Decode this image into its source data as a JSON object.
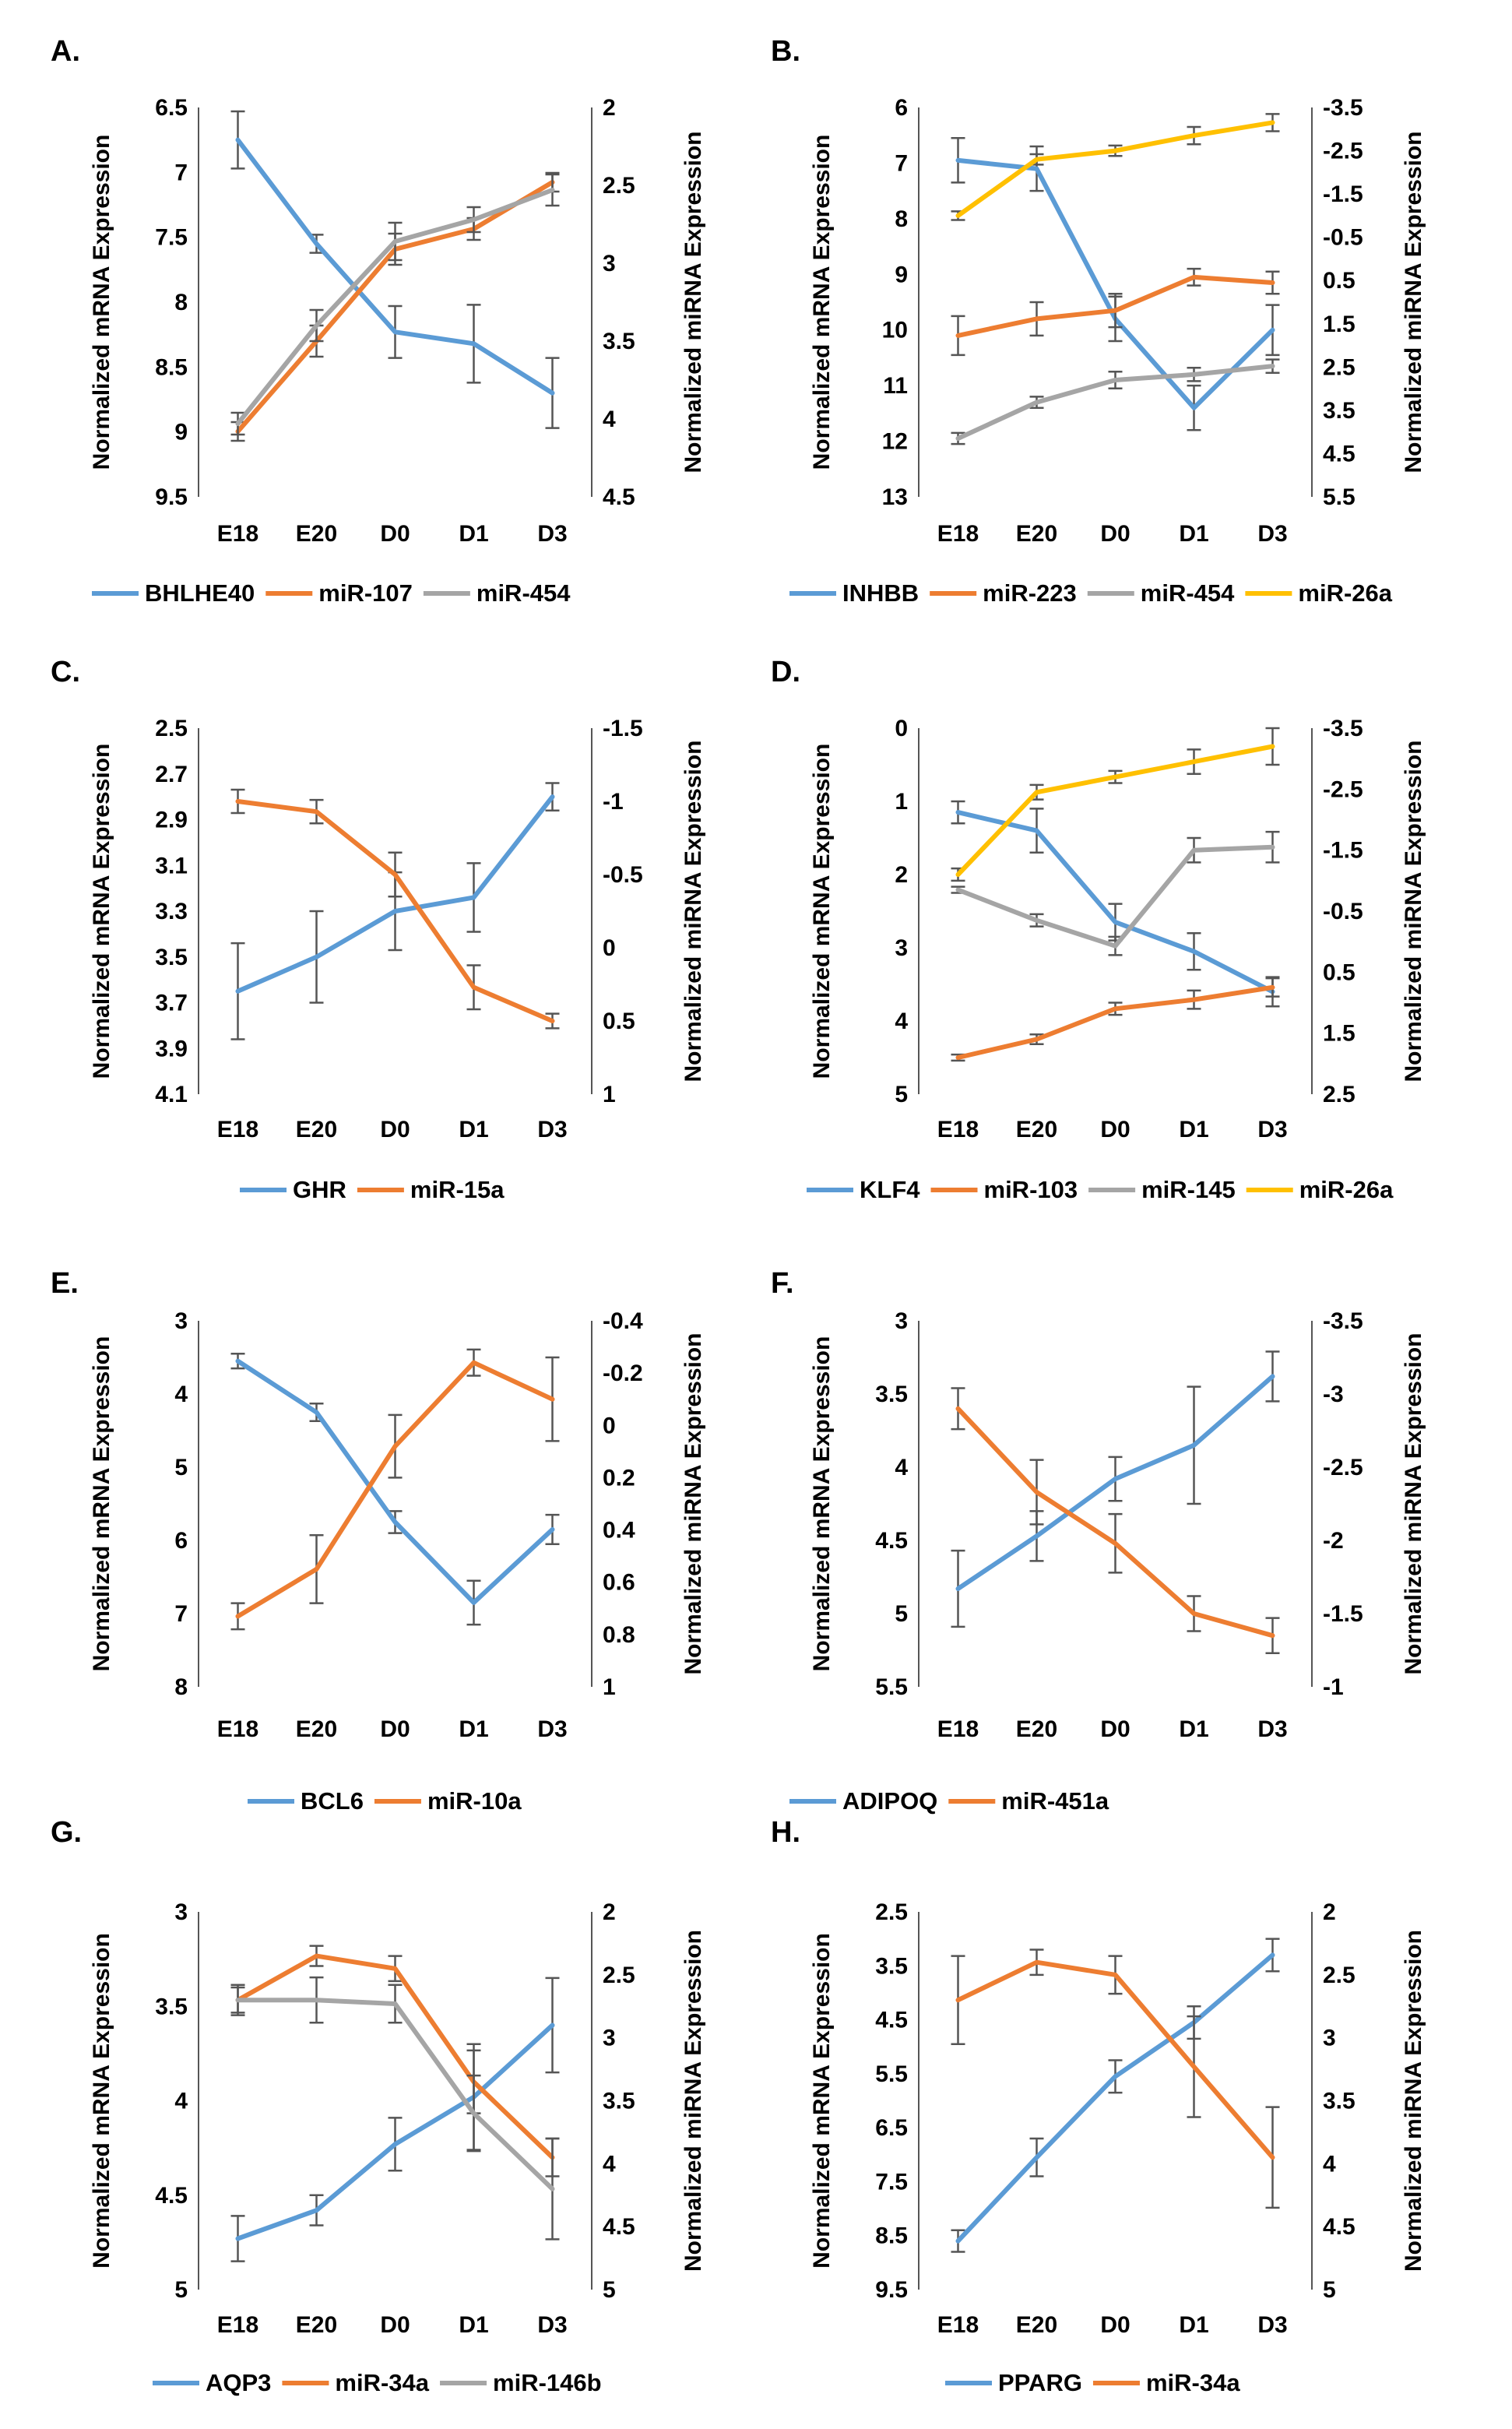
{
  "chart_data": [
    {
      "type": "line",
      "panel": "A.",
      "categories": [
        "E18",
        "E20",
        "D0",
        "D1",
        "D3"
      ],
      "ylabel": "Normalized mRNA Expression",
      "y2label": "Normalized miRNA Expression",
      "ylim": [
        6.5,
        9.5
      ],
      "y_ticks": [
        "6.5",
        "7",
        "7.5",
        "8",
        "8.5",
        "9",
        "9.5"
      ],
      "y_inverted": true,
      "y2lim": [
        2,
        4.5
      ],
      "y2_ticks": [
        "2",
        "2.5",
        "3",
        "3.5",
        "4",
        "4.5"
      ],
      "y2_inverted": true,
      "series": [
        {
          "name": "BHLHE40",
          "color": "#5b9bd5",
          "axis": "left",
          "values": [
            6.75,
            7.55,
            8.23,
            8.32,
            8.7
          ],
          "errors": [
            0.22,
            0.07,
            0.2,
            0.3,
            0.27
          ]
        },
        {
          "name": "miR-107",
          "color": "#ed7d31",
          "axis": "right",
          "values": [
            4.08,
            3.5,
            2.91,
            2.78,
            2.48
          ],
          "errors": [
            0.06,
            0.1,
            0.1,
            0.07,
            0.06
          ]
        },
        {
          "name": "miR-454",
          "color": "#a5a5a5",
          "axis": "right",
          "values": [
            4.03,
            3.4,
            2.86,
            2.72,
            2.53
          ],
          "errors": [
            0.07,
            0.1,
            0.12,
            0.08,
            0.1
          ]
        }
      ]
    },
    {
      "type": "line",
      "panel": "B.",
      "categories": [
        "E18",
        "E20",
        "D0",
        "D1",
        "D3"
      ],
      "ylabel": "Normalized mRNA Expression",
      "y2label": "Normalized miRNA Expression",
      "ylim": [
        6,
        13
      ],
      "y_ticks": [
        "6",
        "7",
        "8",
        "9",
        "10",
        "11",
        "12",
        "13"
      ],
      "y_inverted": true,
      "y2lim": [
        -3.5,
        5.5
      ],
      "y2_ticks": [
        "-3.5",
        "-2.5",
        "-1.5",
        "-0.5",
        "0.5",
        "1.5",
        "2.5",
        "3.5",
        "4.5",
        "5.5"
      ],
      "y2_inverted": true,
      "series": [
        {
          "name": "INHBB",
          "color": "#5b9bd5",
          "axis": "left",
          "values": [
            6.95,
            7.1,
            9.8,
            11.4,
            10.0
          ],
          "errors": [
            0.4,
            0.4,
            0.4,
            0.4,
            0.45
          ]
        },
        {
          "name": "miR-223",
          "color": "#ed7d31",
          "axis": "left",
          "values": [
            10.1,
            9.8,
            9.65,
            9.05,
            9.15
          ],
          "errors": [
            0.35,
            0.3,
            0.3,
            0.15,
            0.2
          ]
        },
        {
          "name": "miR-454",
          "color": "#a5a5a5",
          "axis": "left",
          "values": [
            11.95,
            11.3,
            10.9,
            10.8,
            10.65
          ],
          "errors": [
            0.1,
            0.1,
            0.15,
            0.12,
            0.12
          ]
        },
        {
          "name": "miR-26a",
          "color": "#ffc000",
          "axis": "right",
          "values": [
            -1.0,
            -2.3,
            -2.5,
            -2.85,
            -3.15
          ],
          "errors": [
            0.1,
            0.12,
            0.12,
            0.2,
            0.2
          ]
        }
      ]
    },
    {
      "type": "line",
      "panel": "C.",
      "categories": [
        "E18",
        "E20",
        "D0",
        "D1",
        "D3"
      ],
      "ylabel": "Normalized mRNA Expression",
      "y2label": "Normalized miRNA Expression",
      "ylim": [
        2.5,
        4.1
      ],
      "y_ticks": [
        "2.5",
        "2.7",
        "2.9",
        "3.1",
        "3.3",
        "3.5",
        "3.7",
        "3.9",
        "4.1"
      ],
      "y_inverted": true,
      "y2lim": [
        -1.5,
        1
      ],
      "y2_ticks": [
        "-1.5",
        "-1",
        "-0.5",
        "0",
        "0.5",
        "1"
      ],
      "y2_inverted": true,
      "series": [
        {
          "name": "GHR",
          "color": "#5b9bd5",
          "axis": "left",
          "values": [
            3.65,
            3.5,
            3.3,
            3.24,
            2.8
          ],
          "errors": [
            0.21,
            0.2,
            0.17,
            0.15,
            0.06
          ]
        },
        {
          "name": "miR-15a",
          "color": "#ed7d31",
          "axis": "right",
          "values": [
            -1.0,
            -0.93,
            -0.5,
            0.27,
            0.5
          ],
          "errors": [
            0.08,
            0.08,
            0.15,
            0.15,
            0.05
          ]
        }
      ]
    },
    {
      "type": "line",
      "panel": "D.",
      "categories": [
        "E18",
        "E20",
        "D0",
        "D1",
        "D3"
      ],
      "ylabel": "Normalized mRNA Expression",
      "y2label": "Normalized miRNA Expression",
      "ylim": [
        0,
        5
      ],
      "y_ticks": [
        "0",
        "1",
        "2",
        "3",
        "4",
        "5"
      ],
      "y_inverted": true,
      "y2lim": [
        -3.5,
        2.5
      ],
      "y2_ticks": [
        "-3.5",
        "-2.5",
        "-1.5",
        "-0.5",
        "0.5",
        "1.5",
        "2.5"
      ],
      "y2_inverted": true,
      "series": [
        {
          "name": "KLF4",
          "color": "#5b9bd5",
          "axis": "left",
          "values": [
            1.15,
            1.4,
            2.65,
            3.05,
            3.6
          ],
          "errors": [
            0.15,
            0.3,
            0.25,
            0.25,
            0.2
          ]
        },
        {
          "name": "miR-103",
          "color": "#ed7d31",
          "axis": "right",
          "values": [
            1.9,
            1.6,
            1.1,
            0.95,
            0.75
          ],
          "errors": [
            0.05,
            0.08,
            0.1,
            0.15,
            0.15
          ]
        },
        {
          "name": "miR-145",
          "color": "#a5a5a5",
          "axis": "right",
          "values": [
            -0.85,
            -0.35,
            0.07,
            -1.5,
            -1.55
          ],
          "errors": [
            0.05,
            0.1,
            0.15,
            0.2,
            0.25
          ]
        },
        {
          "name": "miR-26a",
          "color": "#ffc000",
          "axis": "right",
          "values": [
            -1.1,
            -2.45,
            -2.7,
            -2.95,
            -3.2
          ],
          "errors": [
            0.1,
            0.12,
            0.1,
            0.2,
            0.3
          ]
        }
      ]
    },
    {
      "type": "line",
      "panel": "E.",
      "categories": [
        "E18",
        "E20",
        "D0",
        "D1",
        "D3"
      ],
      "ylabel": "Normalized mRNA Expression",
      "y2label": "Normalized miRNA Expression",
      "ylim": [
        3,
        8
      ],
      "y_ticks": [
        "3",
        "4",
        "5",
        "6",
        "7",
        "8"
      ],
      "y_inverted": true,
      "y2lim": [
        -0.4,
        1
      ],
      "y2_ticks": [
        "-0.4",
        "-0.2",
        "0",
        "0.2",
        "0.4",
        "0.6",
        "0.8",
        "1"
      ],
      "y2_inverted": true,
      "series": [
        {
          "name": "BCL6",
          "color": "#5b9bd5",
          "axis": "left",
          "values": [
            3.55,
            4.25,
            5.75,
            6.85,
            5.85
          ],
          "errors": [
            0.1,
            0.12,
            0.15,
            0.3,
            0.2
          ]
        },
        {
          "name": "miR-10a",
          "color": "#ed7d31",
          "axis": "right",
          "values": [
            0.73,
            0.55,
            0.08,
            -0.24,
            -0.1
          ],
          "errors": [
            0.05,
            0.13,
            0.12,
            0.05,
            0.16
          ]
        }
      ]
    },
    {
      "type": "line",
      "panel": "F.",
      "categories": [
        "E18",
        "E20",
        "D0",
        "D1",
        "D3"
      ],
      "ylabel": "Normalized mRNA Expression",
      "y2label": "Normalized miRNA Expression",
      "ylim": [
        3,
        5.5
      ],
      "y_ticks": [
        "3",
        "3.5",
        "4",
        "4.5",
        "5",
        "5.5"
      ],
      "y_inverted": true,
      "y2lim": [
        -3.5,
        -1
      ],
      "y2_ticks": [
        "-3.5",
        "-3",
        "-2.5",
        "-2",
        "-1.5",
        "-1"
      ],
      "y2_inverted": true,
      "series": [
        {
          "name": "ADIPOQ",
          "color": "#5b9bd5",
          "axis": "left",
          "values": [
            4.83,
            4.47,
            4.08,
            3.85,
            3.38
          ],
          "errors": [
            0.26,
            0.17,
            0.15,
            0.4,
            0.17
          ]
        },
        {
          "name": "miR-451a",
          "color": "#ed7d31",
          "axis": "right",
          "values": [
            -2.9,
            -2.33,
            -1.98,
            -1.5,
            -1.35
          ],
          "errors": [
            0.14,
            0.22,
            0.2,
            0.12,
            0.12
          ]
        }
      ]
    },
    {
      "type": "line",
      "panel": "G.",
      "categories": [
        "E18",
        "E20",
        "D0",
        "D1",
        "D3"
      ],
      "ylabel": "Normalized mRNA Expression",
      "y2label": "Normalized miRNA Expression",
      "ylim": [
        3,
        5
      ],
      "y_ticks": [
        "3",
        "3.5",
        "4",
        "4.5",
        "5"
      ],
      "y_inverted": true,
      "y2lim": [
        2,
        5
      ],
      "y2_ticks": [
        "2",
        "2.5",
        "3",
        "3.5",
        "4",
        "4.5",
        "5"
      ],
      "y2_inverted": true,
      "series": [
        {
          "name": "AQP3",
          "color": "#5b9bd5",
          "axis": "left",
          "values": [
            4.73,
            4.58,
            4.23,
            3.98,
            3.6
          ],
          "errors": [
            0.12,
            0.08,
            0.14,
            0.28,
            0.25
          ]
        },
        {
          "name": "miR-34a",
          "color": "#ed7d31",
          "axis": "right",
          "values": [
            2.7,
            2.35,
            2.45,
            3.35,
            3.95
          ],
          "errors": [
            0.1,
            0.08,
            0.1,
            0.25,
            0.15
          ]
        },
        {
          "name": "miR-146b",
          "color": "#a5a5a5",
          "axis": "right",
          "values": [
            2.7,
            2.7,
            2.73,
            3.6,
            4.2
          ],
          "errors": [
            0.12,
            0.18,
            0.15,
            0.3,
            0.4
          ]
        }
      ]
    },
    {
      "type": "line",
      "panel": "H.",
      "categories": [
        "E18",
        "E20",
        "D0",
        "D1",
        "D3"
      ],
      "ylabel": "Normalized mRNA Expression",
      "y2label": "Normalized miRNA Expression",
      "ylim": [
        2.5,
        9.5
      ],
      "y_ticks": [
        "2.5",
        "3.5",
        "4.5",
        "5.5",
        "6.5",
        "7.5",
        "8.5",
        "9.5"
      ],
      "y_inverted": true,
      "y2lim": [
        2,
        5
      ],
      "y2_ticks": [
        "2",
        "2.5",
        "3",
        "3.5",
        "4",
        "4.5",
        "5"
      ],
      "y2_inverted": true,
      "series": [
        {
          "name": "PPARG",
          "color": "#5b9bd5",
          "axis": "left",
          "values": [
            8.6,
            7.05,
            5.55,
            4.55,
            3.3
          ],
          "errors": [
            0.2,
            0.35,
            0.3,
            0.3,
            0.3
          ]
        },
        {
          "name": "miR-34a",
          "color": "#ed7d31",
          "axis": "right",
          "values": [
            2.7,
            2.4,
            2.5,
            3.23,
            3.95
          ],
          "errors": [
            0.35,
            0.1,
            0.15,
            0.4,
            0.4
          ]
        }
      ]
    }
  ]
}
